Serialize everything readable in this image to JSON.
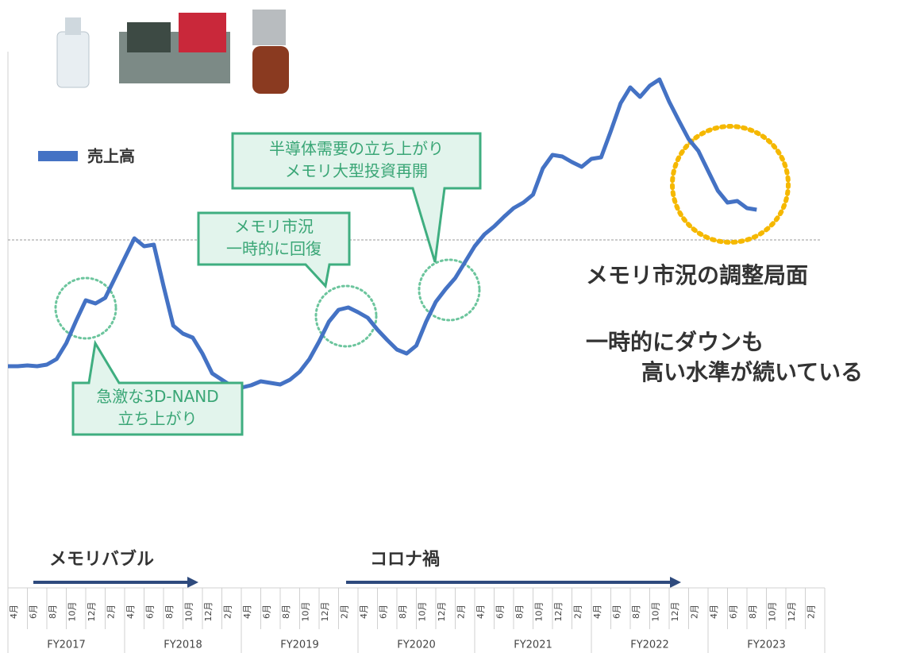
{
  "chart_data": {
    "type": "line",
    "legend_position": "upper left",
    "categories": [
      "4月",
      null,
      "6月",
      null,
      "8月",
      null,
      "10月",
      null,
      "12月",
      null,
      "2月",
      null,
      "4月",
      null,
      "6月",
      null,
      "8月",
      null,
      "10月",
      null,
      "12月",
      null,
      "2月",
      null,
      "4月",
      null,
      "6月",
      null,
      "8月",
      null,
      "10月",
      null,
      "12月",
      null,
      "2月",
      null,
      "4月",
      null,
      "6月",
      null,
      "8月",
      null,
      "10月",
      null,
      "12月",
      null,
      "2月",
      null,
      "4月",
      null,
      "6月",
      null,
      "8月",
      null,
      "10月",
      null,
      "12月",
      null,
      "2月",
      null,
      "4月",
      null,
      "6月",
      null,
      "8月",
      null,
      "10月",
      null,
      "12月",
      null,
      "2月",
      null,
      "4月",
      null,
      "6月",
      null,
      "8月",
      null,
      "10月",
      null,
      "12月",
      null,
      "2月",
      null
    ],
    "fiscal_years": [
      "FY2017",
      "FY2018",
      "FY2019",
      "FY2020",
      "FY2021",
      "FY2022",
      "FY2023"
    ],
    "series": [
      {
        "name": "売上高",
        "color": "#4472c4",
        "values": [
          19.8,
          19.8,
          20,
          19.8,
          20.2,
          21.6,
          25.6,
          31.2,
          36.4,
          35.6,
          37,
          42,
          47,
          52,
          50,
          50.4,
          40,
          30,
          28,
          27,
          23,
          18,
          16.4,
          14.8,
          14.4,
          15,
          16,
          15.6,
          15.2,
          16.4,
          18.4,
          21.6,
          26,
          31,
          34,
          34.6,
          33.4,
          32,
          29,
          26.4,
          24,
          23,
          25,
          31,
          36,
          39.2,
          42,
          46,
          50,
          53,
          55,
          57.4,
          59.6,
          61,
          63,
          69.6,
          73,
          72.6,
          71.2,
          70,
          72,
          72.4,
          79,
          86,
          90,
          87.6,
          90.4,
          92,
          86.4,
          81.6,
          77,
          74,
          69,
          64,
          61,
          61.4,
          59.6,
          59.2,
          null,
          null,
          null,
          null,
          null,
          null
        ]
      }
    ],
    "ylim": [
      0,
      112
    ],
    "reference_line": 51.6,
    "annotations": [
      {
        "lines": [
          "急激な3D-NAND",
          "立ち上がり"
        ]
      },
      {
        "lines": [
          "メモリ市況",
          "一時的に回復"
        ]
      },
      {
        "lines": [
          "半導体需要の立ち上がり",
          "メモリ大型投資再開"
        ]
      }
    ],
    "comments": [
      "メモリ市況の調整局面",
      "一時的にダウンも",
      "高い水準が続いている"
    ],
    "periods": [
      "メモリバブル",
      "コロナ禍"
    ]
  }
}
